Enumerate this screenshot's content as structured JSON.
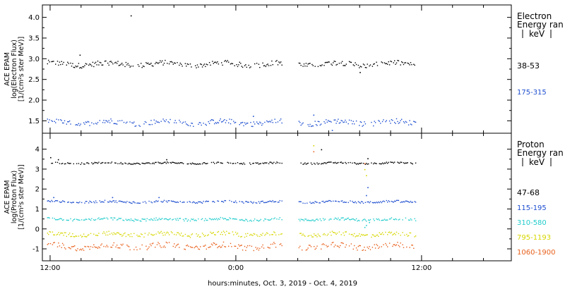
{
  "chart_data": [
    {
      "type": "scatter",
      "panel": "electron",
      "ylabel_lines": [
        "ACE EPAM",
        "log(Electron Flux)",
        "[1/(cm²s ster MeV)]"
      ],
      "ylim": [
        1.2,
        4.3
      ],
      "yticks": [
        "1.5",
        "2.0",
        "2.5",
        "3.0",
        "3.5",
        "4.0"
      ],
      "ytick_values": [
        1.5,
        2.0,
        2.5,
        3.0,
        3.5,
        4.0
      ],
      "xlim_hours": [
        11.5,
        41.8
      ],
      "data_gap_hours": [
        27.0,
        28.0
      ],
      "legend_title": [
        "Electron",
        "Energy ran",
        "[keV]"
      ],
      "series": [
        {
          "name": "38-53",
          "color": "#000000",
          "x_range_hours": [
            11.8,
            35.6
          ],
          "mean": 2.88,
          "spread": 0.06,
          "outliers": [
            [
              17.2,
              4.05
            ],
            [
              13.9,
              3.1
            ],
            [
              32.0,
              2.68
            ]
          ]
        },
        {
          "name": "175-315",
          "color": "#1f4fd0",
          "x_range_hours": [
            11.8,
            35.6
          ],
          "mean": 1.47,
          "spread": 0.06,
          "outliers": [
            [
              25.1,
              1.62
            ],
            [
              29.0,
              1.65
            ],
            [
              30.2,
              1.28
            ]
          ]
        }
      ]
    },
    {
      "type": "scatter",
      "panel": "proton",
      "ylabel_lines": [
        "ACE EPAM",
        "log(Proton Flux)",
        "[1/(cm²s ster MeV)]"
      ],
      "ylim": [
        -1.6,
        4.8
      ],
      "yticks": [
        "-1",
        "0",
        "1",
        "2",
        "3",
        "4"
      ],
      "ytick_values": [
        -1,
        0,
        1,
        2,
        3,
        4
      ],
      "xlim_hours": [
        11.5,
        41.8
      ],
      "data_gap_hours": [
        27.0,
        28.0
      ],
      "legend_title": [
        "Proton",
        "Energy ran",
        "[keV]"
      ],
      "series": [
        {
          "name": "47-68",
          "color": "#000000",
          "x_range_hours": [
            11.8,
            35.6
          ],
          "mean": 3.32,
          "spread": 0.04,
          "outliers": [
            [
              12.0,
              3.6
            ],
            [
              12.5,
              3.5
            ],
            [
              19.5,
              3.5
            ],
            [
              29.5,
              4.0
            ],
            [
              32.5,
              3.55
            ]
          ]
        },
        {
          "name": "115-195",
          "color": "#1f4fd0",
          "x_range_hours": [
            11.8,
            35.6
          ],
          "mean": 1.38,
          "spread": 0.05,
          "outliers": [
            [
              12.2,
              1.6
            ],
            [
              16.0,
              1.6
            ],
            [
              19.0,
              1.6
            ],
            [
              32.5,
              2.1
            ],
            [
              32.4,
              1.7
            ]
          ]
        },
        {
          "name": "310-580",
          "color": "#22cccc",
          "x_range_hours": [
            11.8,
            35.6
          ],
          "mean": 0.5,
          "spread": 0.06,
          "outliers": [
            [
              32.3,
              0.1
            ],
            [
              32.4,
              0.2
            ],
            [
              32.6,
              0.35
            ]
          ]
        },
        {
          "name": "795-1193",
          "color": "#d6d600",
          "x_range_hours": [
            11.8,
            35.6
          ],
          "mean": -0.25,
          "spread": 0.1,
          "outliers": [
            [
              29.0,
              4.2
            ],
            [
              32.4,
              2.7
            ],
            [
              32.3,
              3.0
            ]
          ]
        },
        {
          "name": "1060-1900",
          "color": "#e8601c",
          "x_range_hours": [
            11.8,
            35.6
          ],
          "mean": -0.85,
          "spread": 0.14,
          "outliers": [
            [
              29.0,
              3.9
            ],
            [
              32.3,
              3.3
            ]
          ]
        }
      ]
    }
  ],
  "x_axis": {
    "ticks": [
      {
        "label": "12:00",
        "hour": 12
      },
      {
        "label": "0:00",
        "hour": 24
      },
      {
        "label": "12:00",
        "hour": 36
      }
    ],
    "minor_hours": [
      14,
      16,
      18,
      20,
      22,
      26,
      28,
      30,
      32,
      34,
      38,
      40
    ],
    "title": "hours:minutes, Oct.  3, 2019 - Oct.  4, 2019"
  },
  "colors": {
    "black": "#000000",
    "blue": "#1f4fd0",
    "cyan": "#22cccc",
    "yellow": "#d6d600",
    "orange": "#e8601c"
  }
}
